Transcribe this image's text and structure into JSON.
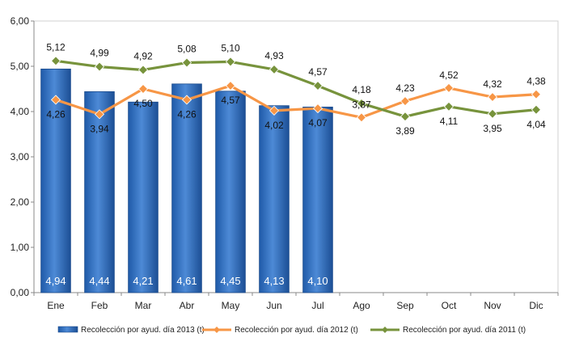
{
  "chart_data": {
    "type": "bar",
    "categories": [
      "Ene",
      "Feb",
      "Mar",
      "Abr",
      "May",
      "Jun",
      "Jul",
      "Ago",
      "Sep",
      "Oct",
      "Nov",
      "Dic"
    ],
    "ylim": [
      0,
      6
    ],
    "yticks": [
      "0,00",
      "1,00",
      "2,00",
      "3,00",
      "4,00",
      "5,00",
      "6,00"
    ],
    "grid": false,
    "legend_position": "bottom",
    "series": [
      {
        "name": "Recolección por ayud. día 2013 (t)",
        "type": "bar",
        "color": "#2E6FC4",
        "values": [
          4.94,
          4.44,
          4.21,
          4.61,
          4.45,
          4.13,
          4.1,
          null,
          null,
          null,
          null,
          null
        ],
        "labels": [
          "4,94",
          "4,44",
          "4,21",
          "4,61",
          "4,45",
          "4,13",
          "4,10",
          "",
          "",
          "",
          "",
          ""
        ]
      },
      {
        "name": "Recolección por ayud. día 2012 (t)",
        "type": "line",
        "color": "#F79646",
        "values": [
          4.26,
          3.94,
          4.5,
          4.26,
          4.57,
          4.02,
          4.07,
          3.87,
          4.23,
          4.52,
          4.32,
          4.38
        ],
        "labels": [
          "4,26",
          "3,94",
          "4,50",
          "4,26",
          "4,57",
          "4,02",
          "4,07",
          "3,87",
          "4,23",
          "4,52",
          "4,32",
          "4,38"
        ]
      },
      {
        "name": "Recolección por ayud. día 2011 (t)",
        "type": "line",
        "color": "#77933C",
        "values": [
          5.12,
          4.99,
          4.92,
          5.08,
          5.1,
          4.93,
          4.57,
          4.18,
          3.89,
          4.11,
          3.95,
          4.04
        ],
        "labels": [
          "5,12",
          "4,99",
          "4,92",
          "5,08",
          "5,10",
          "4,93",
          "4,57",
          "4,18",
          "3,89",
          "4,11",
          "3,95",
          "4,04"
        ]
      }
    ]
  }
}
